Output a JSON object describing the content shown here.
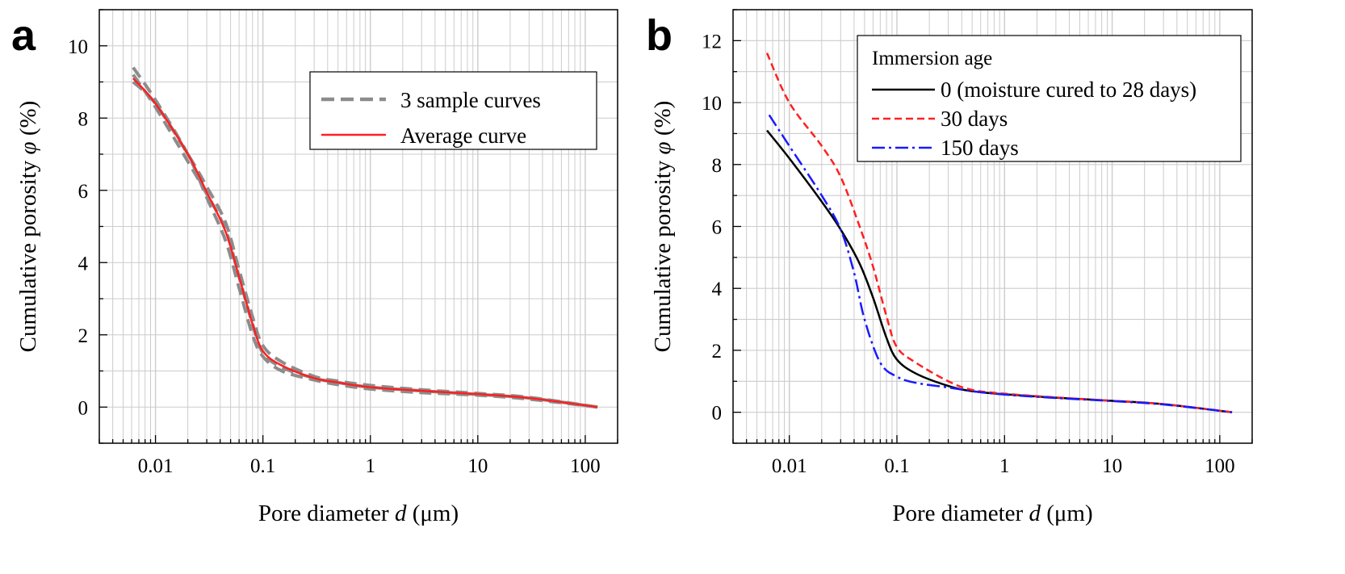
{
  "chart_data": [
    {
      "panel": "a",
      "type": "line",
      "xscale": "log",
      "xlabel_main": "Pore diameter ",
      "xlabel_var": "d",
      "xlabel_unit": " (μm)",
      "ylabel_main": "Cumulative porosity ",
      "ylabel_var": "φ",
      "ylabel_unit": " (%)",
      "xlim": [
        0.003,
        200
      ],
      "ylim": [
        -1,
        11
      ],
      "xticks": [
        {
          "value": 0.01,
          "label": "0.01"
        },
        {
          "value": 0.1,
          "label": "0.1"
        },
        {
          "value": 1,
          "label": "1"
        },
        {
          "value": 10,
          "label": "10"
        },
        {
          "value": 100,
          "label": "100"
        }
      ],
      "yticks": [
        {
          "value": 0,
          "label": "0"
        },
        {
          "value": 2,
          "label": "2"
        },
        {
          "value": 4,
          "label": "4"
        },
        {
          "value": 6,
          "label": "6"
        },
        {
          "value": 8,
          "label": "8"
        },
        {
          "value": 10,
          "label": "10"
        }
      ],
      "grid": true,
      "legend_position": "top-right",
      "legend_title": "",
      "legend": [
        "3 sample curves",
        "Average curve"
      ],
      "series": [
        {
          "name": "3 sample curves",
          "color": "#8c8c8c",
          "dash": "dashed",
          "x": [
            0.0062,
            0.01,
            0.02,
            0.03,
            0.045,
            0.06,
            0.08,
            0.1,
            0.15,
            0.3,
            0.5,
            1,
            3,
            10,
            30,
            130
          ],
          "y": [
            9.4,
            8.5,
            7.0,
            5.8,
            4.6,
            3.3,
            2.0,
            1.4,
            1.0,
            0.75,
            0.62,
            0.5,
            0.4,
            0.33,
            0.22,
            0.0
          ]
        },
        {
          "name": "3 sample curves",
          "color": "#8c8c8c",
          "dash": "dashed",
          "x": [
            0.0062,
            0.01,
            0.02,
            0.03,
            0.045,
            0.06,
            0.08,
            0.1,
            0.15,
            0.3,
            0.5,
            1,
            3,
            10,
            30,
            130
          ],
          "y": [
            9.2,
            8.3,
            6.8,
            5.9,
            4.9,
            3.6,
            2.3,
            1.5,
            1.1,
            0.8,
            0.68,
            0.55,
            0.45,
            0.35,
            0.25,
            0.0
          ]
        },
        {
          "name": "3 sample curves",
          "color": "#8c8c8c",
          "dash": "dashed",
          "x": [
            0.0062,
            0.01,
            0.02,
            0.03,
            0.045,
            0.06,
            0.08,
            0.1,
            0.15,
            0.3,
            0.5,
            1,
            3,
            10,
            30,
            130
          ],
          "y": [
            9.0,
            8.4,
            7.0,
            6.1,
            5.1,
            3.8,
            2.5,
            1.7,
            1.25,
            0.85,
            0.72,
            0.6,
            0.48,
            0.38,
            0.27,
            0.0
          ]
        },
        {
          "name": "Average curve",
          "color": "#ff2020",
          "dash": "solid",
          "x": [
            0.0062,
            0.01,
            0.02,
            0.03,
            0.045,
            0.06,
            0.08,
            0.1,
            0.15,
            0.3,
            0.5,
            1,
            3,
            10,
            30,
            130
          ],
          "y": [
            9.1,
            8.4,
            7.0,
            5.95,
            4.85,
            3.6,
            2.3,
            1.55,
            1.15,
            0.8,
            0.68,
            0.55,
            0.45,
            0.36,
            0.25,
            0.0
          ]
        }
      ]
    },
    {
      "panel": "b",
      "type": "line",
      "xscale": "log",
      "xlabel_main": "Pore diameter ",
      "xlabel_var": "d",
      "xlabel_unit": " (μm)",
      "ylabel_main": "Cumulative porosity ",
      "ylabel_var": "φ",
      "ylabel_unit": " (%)",
      "xlim": [
        0.003,
        200
      ],
      "ylim": [
        -1,
        13
      ],
      "xticks": [
        {
          "value": 0.01,
          "label": "0.01"
        },
        {
          "value": 0.1,
          "label": "0.1"
        },
        {
          "value": 1,
          "label": "1"
        },
        {
          "value": 10,
          "label": "10"
        },
        {
          "value": 100,
          "label": "100"
        }
      ],
      "yticks": [
        {
          "value": 0,
          "label": "0"
        },
        {
          "value": 2,
          "label": "2"
        },
        {
          "value": 4,
          "label": "4"
        },
        {
          "value": 6,
          "label": "6"
        },
        {
          "value": 8,
          "label": "8"
        },
        {
          "value": 10,
          "label": "10"
        },
        {
          "value": 12,
          "label": "12"
        }
      ],
      "grid": true,
      "legend_position": "top-right",
      "legend_title": "Immersion age",
      "legend": [
        "0 (moisture cured to 28 days)",
        "30 days",
        "150 days"
      ],
      "series": [
        {
          "name": "0 (moisture cured to 28 days)",
          "color": "#000000",
          "dash": "solid",
          "x": [
            0.0062,
            0.01,
            0.02,
            0.03,
            0.045,
            0.06,
            0.08,
            0.1,
            0.15,
            0.3,
            0.5,
            1,
            3,
            10,
            30,
            130
          ],
          "y": [
            9.1,
            8.2,
            6.8,
            5.9,
            4.8,
            3.7,
            2.4,
            1.7,
            1.25,
            0.85,
            0.68,
            0.58,
            0.47,
            0.37,
            0.26,
            0.0
          ]
        },
        {
          "name": "30 days",
          "color": "#ff2020",
          "dash": "dashed",
          "x": [
            0.0062,
            0.01,
            0.02,
            0.03,
            0.045,
            0.06,
            0.08,
            0.1,
            0.15,
            0.3,
            0.5,
            1,
            3,
            10,
            30,
            130
          ],
          "y": [
            11.6,
            10.0,
            8.6,
            7.6,
            6.0,
            4.7,
            3.1,
            2.1,
            1.6,
            1.0,
            0.72,
            0.6,
            0.48,
            0.37,
            0.26,
            0.0
          ]
        },
        {
          "name": "150 days",
          "color": "#1a1aff",
          "dash": "dashdot",
          "x": [
            0.0065,
            0.01,
            0.02,
            0.03,
            0.04,
            0.05,
            0.07,
            0.1,
            0.15,
            0.3,
            0.5,
            1,
            3,
            10,
            30,
            130
          ],
          "y": [
            9.6,
            8.6,
            7.0,
            5.9,
            4.5,
            3.0,
            1.6,
            1.15,
            0.95,
            0.8,
            0.68,
            0.57,
            0.46,
            0.36,
            0.25,
            0.0
          ]
        }
      ]
    }
  ]
}
